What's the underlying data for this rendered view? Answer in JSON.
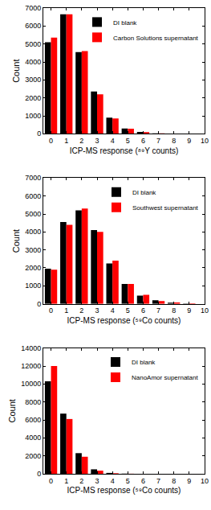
{
  "chart_data": [
    {
      "type": "bar",
      "x_label": "ICP-MS response (⁸⁹Y counts)",
      "y_label": "Count",
      "x": [
        0,
        1,
        2,
        3,
        4,
        5,
        6,
        7,
        8
      ],
      "series": [
        {
          "name": "DI blank",
          "color": "#000000",
          "values": [
            5100,
            6650,
            4550,
            2350,
            900,
            300,
            100,
            30,
            10
          ]
        },
        {
          "name": "Carbon Solutions supernatant",
          "color": "#ff0000",
          "values": [
            5350,
            6650,
            4600,
            2200,
            850,
            280,
            90,
            30,
            10
          ]
        }
      ],
      "xlim": [
        -0.5,
        10
      ],
      "xticks": [
        0,
        1,
        2,
        3,
        4,
        5,
        6,
        7,
        8,
        9,
        10
      ],
      "ylim": [
        0,
        7000
      ],
      "yticks": [
        0,
        1000,
        2000,
        3000,
        4000,
        5000,
        6000,
        7000
      ],
      "grid": false,
      "legend": "upper right"
    },
    {
      "type": "bar",
      "x_label": "ICP-MS response (⁵⁹Co counts)",
      "y_label": "Count",
      "x": [
        0,
        1,
        2,
        3,
        4,
        5,
        6,
        7,
        8,
        9
      ],
      "series": [
        {
          "name": "DI blank",
          "color": "#000000",
          "values": [
            1950,
            4550,
            5200,
            4100,
            2250,
            1100,
            450,
            200,
            60,
            20
          ]
        },
        {
          "name": "Southwest supernatant",
          "color": "#ff0000",
          "values": [
            1900,
            4400,
            5300,
            4000,
            2400,
            1100,
            500,
            150,
            70,
            30
          ]
        }
      ],
      "xlim": [
        -0.5,
        10
      ],
      "xticks": [
        0,
        1,
        2,
        3,
        4,
        5,
        6,
        7,
        8,
        9,
        10
      ],
      "ylim": [
        0,
        7000
      ],
      "yticks": [
        0,
        1000,
        2000,
        3000,
        4000,
        5000,
        6000,
        7000
      ],
      "grid": false,
      "legend": "upper right"
    },
    {
      "type": "bar",
      "x_label": "ICP-MS response (⁵⁹Co counts)",
      "y_label": "Count",
      "x": [
        0,
        1,
        2,
        3,
        4,
        5
      ],
      "series": [
        {
          "name": "DI blank",
          "color": "#000000",
          "values": [
            10300,
            6700,
            2300,
            500,
            100,
            20
          ]
        },
        {
          "name": "NanoAmor supernatant",
          "color": "#ff0000",
          "values": [
            12000,
            6100,
            1900,
            350,
            60,
            10
          ]
        }
      ],
      "xlim": [
        -0.5,
        10
      ],
      "xticks": [
        0,
        1,
        2,
        3,
        4,
        5,
        6,
        7,
        8,
        9,
        10
      ],
      "ylim": [
        0,
        14000
      ],
      "yticks": [
        0,
        2000,
        4000,
        6000,
        8000,
        10000,
        12000,
        14000
      ],
      "grid": false,
      "legend": "upper right"
    }
  ]
}
